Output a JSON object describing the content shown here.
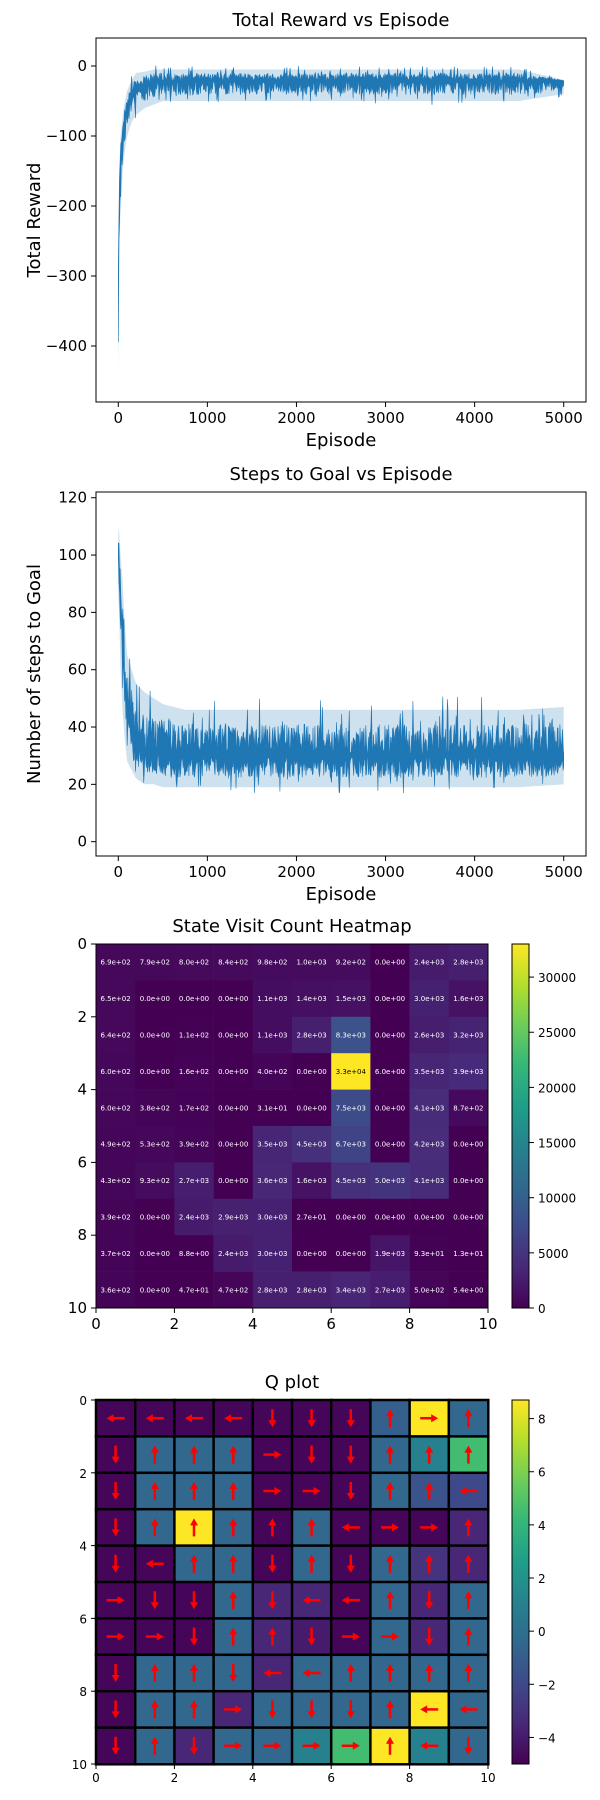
{
  "chart_data": [
    {
      "type": "area",
      "title": "Total Reward vs Episode",
      "xlabel": "Episode",
      "ylabel": "Total Reward",
      "xlim": [
        -250,
        5250
      ],
      "ylim": [
        -480,
        40
      ],
      "x_ticks": [
        0,
        1000,
        2000,
        3000,
        4000,
        5000
      ],
      "y_ticks": [
        -400,
        -300,
        -200,
        -100,
        0
      ],
      "y_tick_labels": [
        "−400",
        "−300",
        "−200",
        "−100",
        "0"
      ],
      "grid": false,
      "color": "#1f77b4",
      "series": [
        {
          "x": [
            0,
            10,
            25,
            50,
            75,
            100,
            150,
            200,
            300,
            400,
            500,
            750,
            1000,
            1500,
            2000,
            2500,
            3000,
            3500,
            4000,
            4500,
            5000
          ],
          "mean": [
            -320,
            -190,
            -120,
            -95,
            -80,
            -60,
            -45,
            -35,
            -28,
            -24,
            -22,
            -21,
            -21,
            -21,
            -21,
            -21,
            -21,
            -21,
            -21,
            -21,
            -21
          ],
          "upper": [
            -260,
            -150,
            -100,
            -70,
            -50,
            -35,
            -20,
            -10,
            -8,
            -5,
            -5,
            -5,
            -5,
            -5,
            -5,
            -5,
            -5,
            -5,
            -5,
            -5,
            -20
          ],
          "lower": [
            -440,
            -300,
            -200,
            -150,
            -120,
            -100,
            -80,
            -70,
            -60,
            -55,
            -50,
            -50,
            -50,
            -50,
            -50,
            -50,
            -50,
            -50,
            -50,
            -50,
            -40
          ]
        }
      ]
    },
    {
      "type": "area",
      "title": "Steps to Goal vs Episode",
      "xlabel": "Episode",
      "ylabel": "Number of steps to Goal",
      "xlim": [
        -250,
        5250
      ],
      "ylim": [
        -5,
        122
      ],
      "x_ticks": [
        0,
        1000,
        2000,
        3000,
        4000,
        5000
      ],
      "y_ticks": [
        0,
        20,
        40,
        60,
        80,
        100,
        120
      ],
      "grid": false,
      "color": "#1f77b4",
      "series": [
        {
          "x": [
            0,
            10,
            25,
            50,
            75,
            100,
            150,
            200,
            300,
            400,
            500,
            750,
            1000,
            1500,
            2000,
            2500,
            3000,
            3500,
            4000,
            4500,
            5000
          ],
          "mean": [
            100,
            95,
            85,
            70,
            55,
            45,
            38,
            34,
            32,
            31,
            30,
            30,
            30,
            30,
            30,
            30,
            30,
            30,
            30,
            30,
            30
          ],
          "upper": [
            110,
            108,
            100,
            90,
            75,
            65,
            60,
            55,
            52,
            50,
            48,
            46,
            46,
            46,
            46,
            46,
            46,
            46,
            46,
            46,
            47
          ],
          "lower": [
            85,
            80,
            60,
            45,
            35,
            28,
            25,
            22,
            20,
            20,
            19,
            19,
            19,
            19,
            19,
            19,
            19,
            19,
            19,
            19,
            20
          ]
        }
      ]
    },
    {
      "type": "heatmap",
      "title": "State Visit Count Heatmap",
      "xlim": [
        0,
        10
      ],
      "ylim": [
        10,
        0
      ],
      "x_ticks": [
        0,
        2,
        4,
        6,
        8,
        10
      ],
      "y_ticks": [
        0,
        2,
        4,
        6,
        8,
        10
      ],
      "colorbar_ticks": [
        0,
        5000,
        10000,
        15000,
        20000,
        25000,
        30000
      ],
      "colorbar_max": 33000,
      "colormap": "viridis",
      "labels": [
        [
          "6.9e+02",
          "7.9e+02",
          "8.0e+02",
          "8.4e+02",
          "9.8e+02",
          "1.0e+03",
          "9.2e+02",
          "0.0e+00",
          "2.4e+03",
          "2.8e+03"
        ],
        [
          "6.5e+02",
          "0.0e+00",
          "0.0e+00",
          "0.0e+00",
          "1.1e+03",
          "1.4e+03",
          "1.5e+03",
          "0.0e+00",
          "3.0e+03",
          "1.6e+03"
        ],
        [
          "6.4e+02",
          "0.0e+00",
          "1.1e+02",
          "0.0e+00",
          "1.1e+03",
          "2.8e+03",
          "8.3e+03",
          "0.0e+00",
          "2.6e+03",
          "3.2e+03"
        ],
        [
          "6.0e+02",
          "0.0e+00",
          "1.6e+02",
          "0.0e+00",
          "4.0e+02",
          "0.0e+00",
          "3.3e+04",
          "6.0e+00",
          "3.5e+03",
          "3.9e+03"
        ],
        [
          "6.0e+02",
          "3.8e+02",
          "1.7e+02",
          "0.0e+00",
          "3.1e+01",
          "0.0e+00",
          "7.5e+03",
          "0.0e+00",
          "4.1e+03",
          "8.7e+02"
        ],
        [
          "4.9e+02",
          "5.3e+02",
          "3.9e+02",
          "0.0e+00",
          "3.5e+03",
          "4.5e+03",
          "6.7e+03",
          "0.0e+00",
          "4.2e+03",
          "0.0e+00"
        ],
        [
          "4.3e+02",
          "9.3e+02",
          "2.7e+03",
          "0.0e+00",
          "3.6e+03",
          "1.6e+03",
          "4.5e+03",
          "5.0e+03",
          "4.1e+03",
          "0.0e+00"
        ],
        [
          "3.9e+02",
          "0.0e+00",
          "2.4e+03",
          "2.9e+03",
          "3.0e+03",
          "2.7e+01",
          "0.0e+00",
          "0.0e+00",
          "0.0e+00",
          "0.0e+00"
        ],
        [
          "3.7e+02",
          "0.0e+00",
          "8.8e+00",
          "2.4e+03",
          "3.0e+03",
          "0.0e+00",
          "0.0e+00",
          "1.9e+03",
          "9.3e+01",
          "1.3e+01"
        ],
        [
          "3.6e+02",
          "0.0e+00",
          "4.7e+01",
          "4.7e+02",
          "2.8e+03",
          "2.8e+03",
          "3.4e+03",
          "2.7e+03",
          "5.0e+02",
          "5.4e+00"
        ]
      ],
      "values": [
        [
          690,
          790,
          800,
          840,
          980,
          1000,
          920,
          0,
          2400,
          2800
        ],
        [
          650,
          0,
          0,
          0,
          1100,
          1400,
          1500,
          0,
          3000,
          1600
        ],
        [
          640,
          0,
          110,
          0,
          1100,
          2800,
          8300,
          0,
          2600,
          3200
        ],
        [
          600,
          0,
          160,
          0,
          400,
          0,
          33000,
          6,
          3500,
          3900
        ],
        [
          600,
          380,
          170,
          0,
          31,
          0,
          7500,
          0,
          4100,
          870
        ],
        [
          490,
          530,
          390,
          0,
          3500,
          4500,
          6700,
          0,
          4200,
          0
        ],
        [
          430,
          930,
          2700,
          0,
          3600,
          1600,
          4500,
          5000,
          4100,
          0
        ],
        [
          390,
          0,
          2400,
          2900,
          3000,
          27,
          0,
          0,
          0,
          0
        ],
        [
          370,
          0,
          8.8,
          2400,
          3000,
          0,
          0,
          1900,
          93,
          13
        ],
        [
          360,
          0,
          47,
          470,
          2800,
          2800,
          3400,
          2700,
          500,
          5.4
        ]
      ]
    },
    {
      "type": "heatmap",
      "title": "Q plot",
      "xlim": [
        0,
        10
      ],
      "ylim": [
        10,
        0
      ],
      "x_ticks": [
        0,
        2,
        4,
        6,
        8,
        10
      ],
      "y_ticks": [
        0,
        2,
        4,
        6,
        8,
        10
      ],
      "colorbar_ticks": [
        -4,
        -2,
        0,
        2,
        4,
        6,
        8
      ],
      "colorbar_tick_labels": [
        "−4",
        "−2",
        "0",
        "2",
        "4",
        "6",
        "8"
      ],
      "colorbar_range": [
        -5,
        8.7
      ],
      "colormap": "viridis",
      "arrow_color": "#ff0000",
      "values": [
        [
          -4.8,
          -4.8,
          -4.8,
          -4.8,
          -4.8,
          -4.8,
          -4.8,
          -0.9,
          8.7,
          -0.5
        ],
        [
          -4.8,
          -0.5,
          -0.5,
          -0.5,
          -4.8,
          -4.8,
          -4.8,
          -0.5,
          1.0,
          4.5
        ],
        [
          -4.8,
          -0.5,
          -0.5,
          -0.5,
          -4.8,
          -4.8,
          -4.8,
          -0.5,
          -1.5,
          -2.0
        ],
        [
          -4.8,
          -0.5,
          8.7,
          -0.5,
          -4.8,
          -0.5,
          -4.8,
          -4.8,
          -4.8,
          -3.5
        ],
        [
          -4.8,
          -4.8,
          -0.5,
          -0.5,
          -4.8,
          -0.5,
          -4.8,
          -0.5,
          -3.0,
          -3.5
        ],
        [
          -4.8,
          -4.8,
          -4.8,
          -0.5,
          -3.5,
          -3.5,
          -4.8,
          -0.5,
          -3.5,
          -0.5
        ],
        [
          -4.8,
          -4.8,
          -4.8,
          -0.5,
          -3.5,
          -4.0,
          -4.8,
          -0.5,
          -3.5,
          -0.5
        ],
        [
          -4.8,
          -0.5,
          -0.5,
          -0.5,
          -3.5,
          -0.5,
          -0.5,
          -0.5,
          -0.5,
          -0.5
        ],
        [
          -4.8,
          -0.5,
          -0.5,
          -3.5,
          -0.5,
          -0.5,
          -0.5,
          -0.5,
          8.7,
          -0.5
        ],
        [
          -4.8,
          -0.5,
          -3.5,
          -0.5,
          -0.5,
          1.0,
          4.5,
          8.7,
          1.0,
          -0.5
        ]
      ],
      "arrows": [
        [
          "left",
          "left",
          "left",
          "left",
          "down",
          "down",
          "down",
          "up",
          "right",
          "up"
        ],
        [
          "down",
          "up",
          "up",
          "up",
          "right",
          "down",
          "down",
          "up",
          "up",
          "up"
        ],
        [
          "down",
          "up",
          "up",
          "up",
          "right",
          "right",
          "down",
          "up",
          "up",
          "left"
        ],
        [
          "down",
          "up",
          "up",
          "up",
          "up",
          "up",
          "left",
          "right",
          "right",
          "up"
        ],
        [
          "down",
          "left",
          "up",
          "up",
          "down",
          "up",
          "down",
          "up",
          "up",
          "up"
        ],
        [
          "right",
          "down",
          "down",
          "up",
          "down",
          "left",
          "left",
          "up",
          "down",
          "up"
        ],
        [
          "right",
          "right",
          "down",
          "up",
          "up",
          "down",
          "right",
          "right",
          "down",
          "up"
        ],
        [
          "down",
          "up",
          "up",
          "down",
          "left",
          "left",
          "up",
          "up",
          "up",
          "up"
        ],
        [
          "down",
          "up",
          "up",
          "right",
          "down",
          "down",
          "down",
          "up",
          "left",
          "left"
        ],
        [
          "down",
          "up",
          "down",
          "right",
          "right",
          "right",
          "right",
          "up",
          "left",
          "down"
        ]
      ]
    }
  ]
}
